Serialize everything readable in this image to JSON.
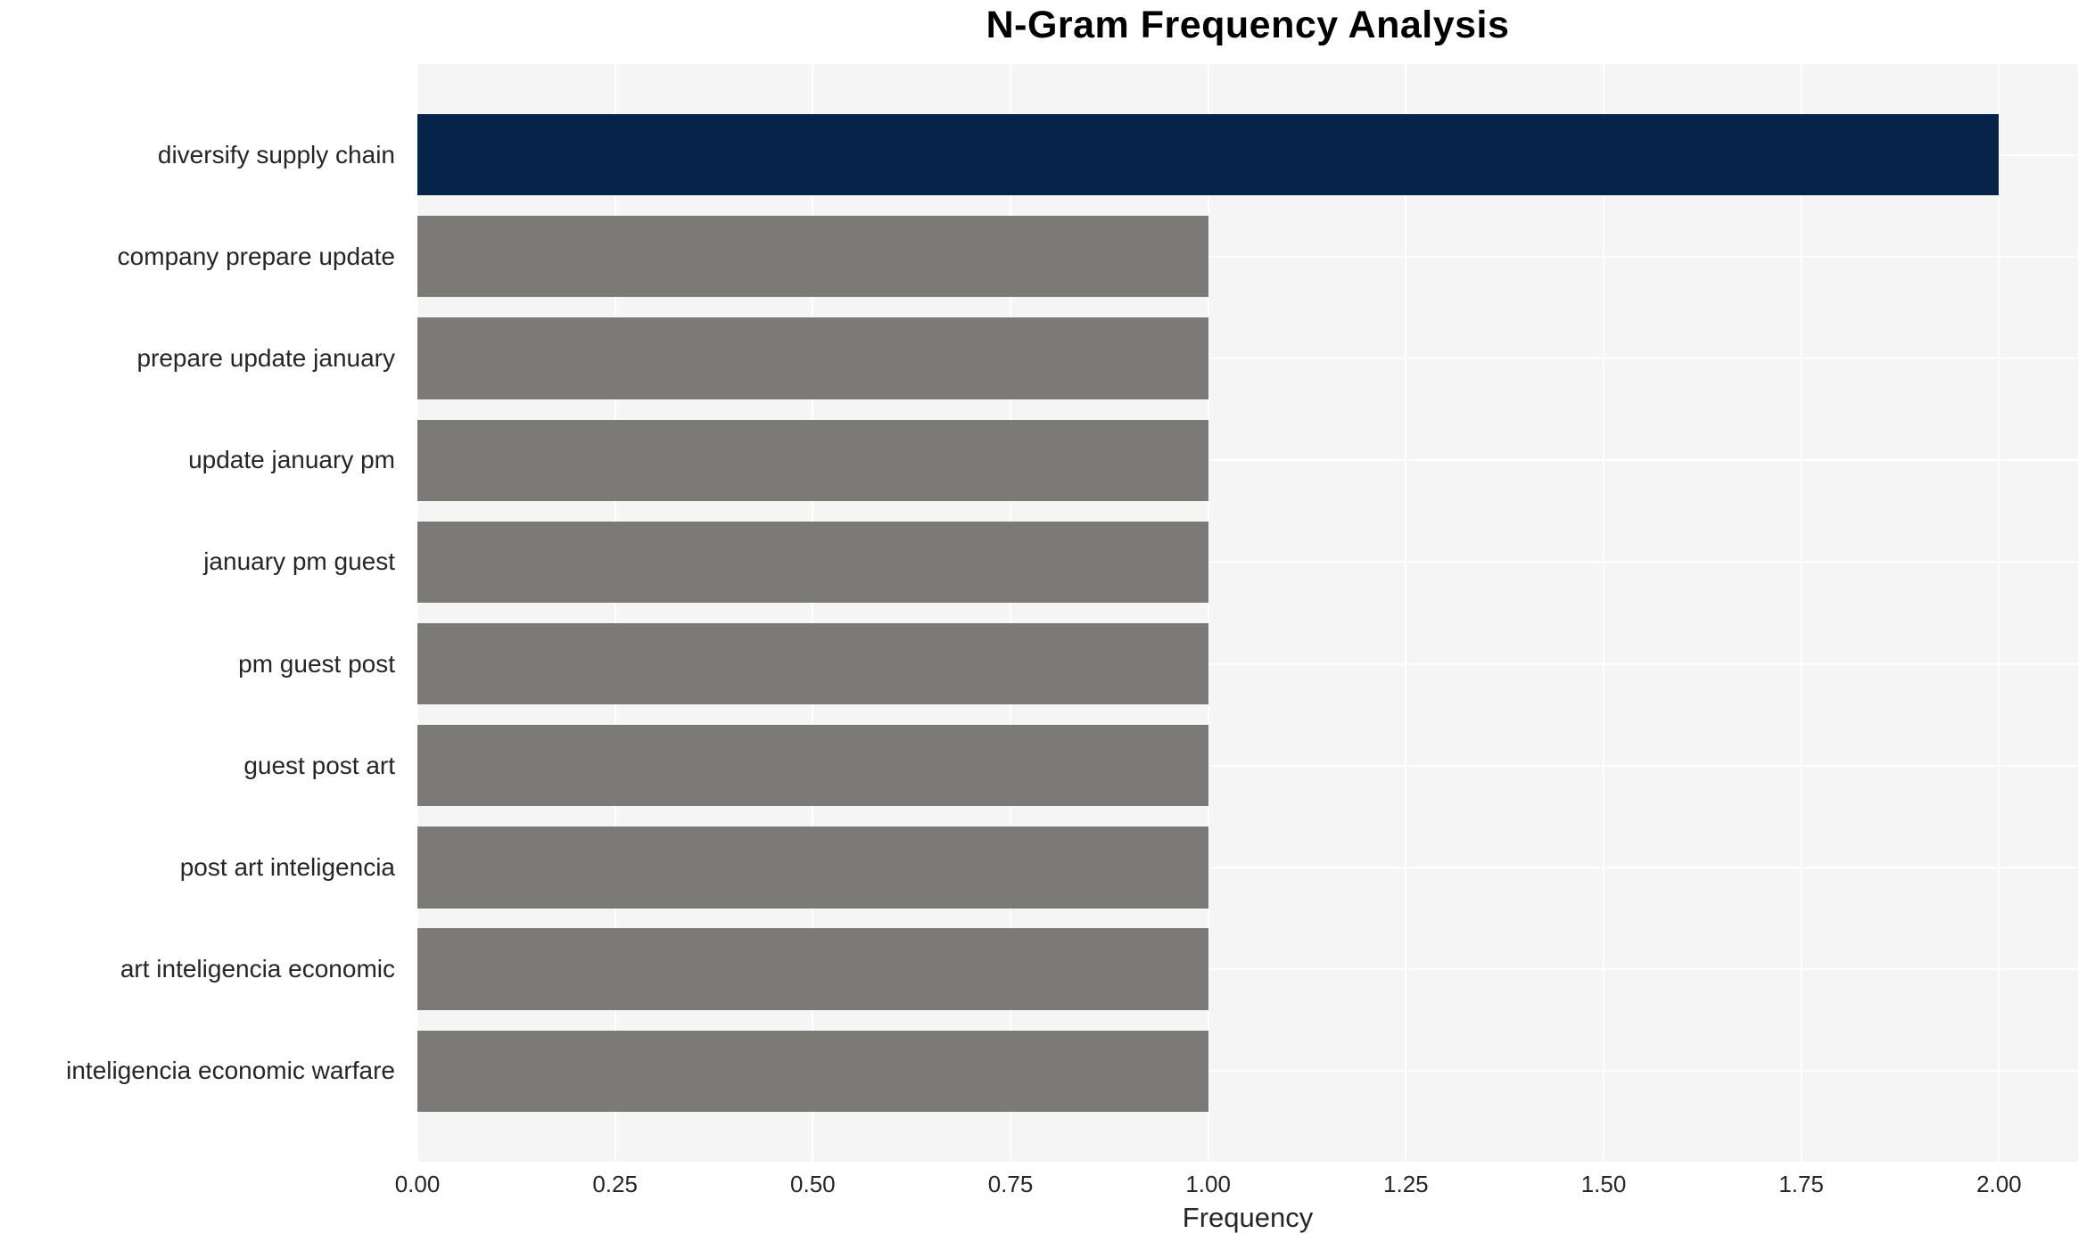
{
  "chart_data": {
    "type": "bar",
    "orientation": "horizontal",
    "title": "N-Gram Frequency Analysis",
    "xlabel": "Frequency",
    "ylabel": "",
    "categories": [
      "diversify supply chain",
      "company prepare update",
      "prepare update january",
      "update january pm",
      "january pm guest",
      "pm guest post",
      "guest post art",
      "post art inteligencia",
      "art inteligencia economic",
      "inteligencia economic warfare"
    ],
    "values": [
      2,
      1,
      1,
      1,
      1,
      1,
      1,
      1,
      1,
      1
    ],
    "bar_colors": [
      "#062449",
      "#7b7a76",
      "#7b7a76",
      "#7b7a76",
      "#7b7a76",
      "#7b7a76",
      "#7b7a76",
      "#7b7a76",
      "#7b7a76",
      "#7b7a76"
    ],
    "xlim": [
      0,
      2.1
    ],
    "xticks": [
      0,
      0.25,
      0.5,
      0.75,
      1.0,
      1.25,
      1.5,
      1.75,
      2.0
    ],
    "xtick_labels": [
      "0.00",
      "0.25",
      "0.50",
      "0.75",
      "1.00",
      "1.25",
      "1.50",
      "1.75",
      "2.00"
    ],
    "grid": "on",
    "legend": "none",
    "colors": {
      "panel_background": "#f5f5f5",
      "gridline": "#ffffff",
      "highlight_bar": "#062449",
      "default_bar": "#7b7a76",
      "axis_text": "#262626",
      "title_text": "#000000"
    }
  }
}
